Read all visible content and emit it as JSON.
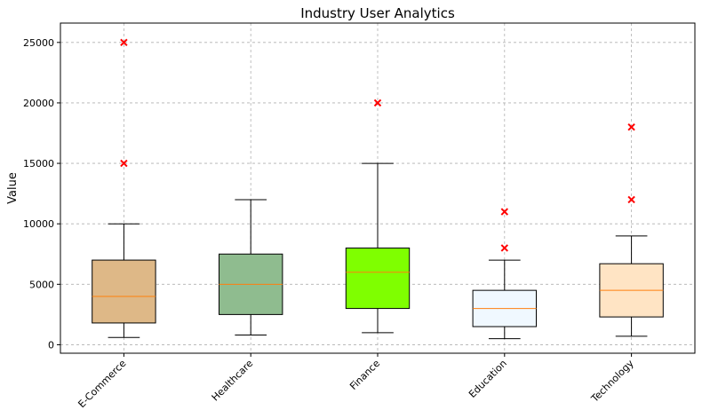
{
  "chart_data": {
    "type": "box",
    "title": "Industry User Analytics",
    "xlabel": "",
    "ylabel": "Value",
    "ylim": [
      -700,
      26600
    ],
    "yticks": [
      0,
      5000,
      10000,
      15000,
      20000,
      25000
    ],
    "grid": true,
    "categories": [
      "E-Commerce",
      "Healthcare",
      "Finance",
      "Education",
      "Technology"
    ],
    "boxes": [
      {
        "category": "E-Commerce",
        "min": 600,
        "q1": 1800,
        "median": 4000,
        "q3": 7000,
        "max": 10000,
        "outliers": [
          15000,
          25000
        ],
        "color": "#deb887"
      },
      {
        "category": "Healthcare",
        "min": 800,
        "q1": 2500,
        "median": 5000,
        "q3": 7500,
        "max": 12000,
        "outliers": [],
        "color": "#8fbc8f"
      },
      {
        "category": "Finance",
        "min": 1000,
        "q1": 3000,
        "median": 6000,
        "q3": 8000,
        "max": 15000,
        "outliers": [
          20000
        ],
        "color": "#7fff00"
      },
      {
        "category": "Education",
        "min": 500,
        "q1": 1500,
        "median": 3000,
        "q3": 4500,
        "max": 7000,
        "outliers": [
          8000,
          11000
        ],
        "color": "#f0f8ff"
      },
      {
        "category": "Technology",
        "min": 700,
        "q1": 2300,
        "median": 4500,
        "q3": 6700,
        "max": 9000,
        "outliers": [
          12000,
          18000
        ],
        "color": "#ffe4c4"
      }
    ],
    "median_color": "#ff7f0e",
    "outlier_color": "#ff0000",
    "outlier_marker": "x"
  }
}
